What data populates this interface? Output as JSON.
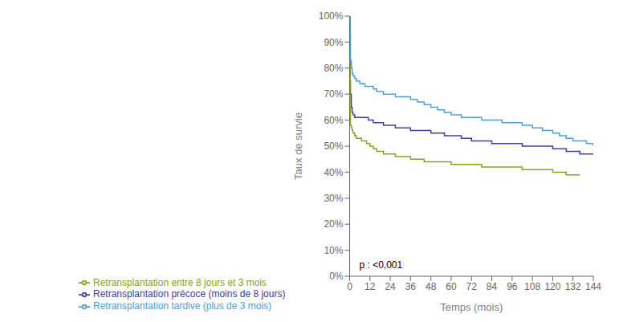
{
  "chart_data": {
    "type": "line",
    "title": "",
    "xlabel": "Temps (mois)",
    "ylabel": "Taux de survie",
    "annotation": "p : <0,001",
    "line_style": "step",
    "grid": false,
    "legend": "bottom",
    "xlim": [
      0,
      144
    ],
    "xticks": [
      0,
      12,
      24,
      36,
      48,
      60,
      72,
      84,
      96,
      108,
      120,
      132,
      144
    ],
    "ylim": [
      0,
      1.0
    ],
    "yticks": [
      {
        "value": 0.0,
        "label": "0%"
      },
      {
        "value": 0.1,
        "label": "10%"
      },
      {
        "value": 0.2,
        "label": "20%"
      },
      {
        "value": 0.3,
        "label": "30%"
      },
      {
        "value": 0.4,
        "label": "40%"
      },
      {
        "value": 0.5,
        "label": "50%"
      },
      {
        "value": 0.6,
        "label": "60%"
      },
      {
        "value": 0.7,
        "label": "70%"
      },
      {
        "value": 0.8,
        "label": "80%"
      },
      {
        "value": 0.9,
        "label": "90%"
      },
      {
        "value": 1.0,
        "label": "100%"
      }
    ],
    "series": [
      {
        "name": "Retransplantation précoce (moins de 8 jours)",
        "color": "#4040a0",
        "x": [
          0,
          0.3,
          0.5,
          1,
          1.5,
          2,
          3,
          4,
          5,
          6,
          7,
          8,
          9,
          10,
          11,
          12,
          14,
          16,
          18,
          20,
          22,
          24,
          27,
          30,
          33,
          36,
          40,
          44,
          48,
          52,
          56,
          60,
          66,
          72,
          78,
          84,
          90,
          96,
          102,
          108,
          114,
          120,
          124,
          128,
          132,
          136,
          140,
          144
        ],
        "values": [
          1.0,
          0.75,
          0.7,
          0.65,
          0.63,
          0.62,
          0.61,
          0.61,
          0.61,
          0.61,
          0.61,
          0.61,
          0.61,
          0.61,
          0.6,
          0.6,
          0.59,
          0.59,
          0.59,
          0.58,
          0.58,
          0.58,
          0.57,
          0.57,
          0.57,
          0.56,
          0.56,
          0.56,
          0.55,
          0.55,
          0.54,
          0.54,
          0.53,
          0.52,
          0.52,
          0.51,
          0.51,
          0.51,
          0.5,
          0.5,
          0.5,
          0.49,
          0.49,
          0.48,
          0.48,
          0.47,
          0.47,
          0.47
        ]
      },
      {
        "name": "Retransplantation entre 8 jours et 3 mois",
        "color": "#8ca020",
        "x": [
          0,
          0.3,
          0.5,
          1,
          1.5,
          2,
          3,
          4,
          5,
          6,
          7,
          8,
          9,
          10,
          11,
          12,
          14,
          16,
          18,
          20,
          22,
          24,
          27,
          30,
          33,
          36,
          40,
          44,
          48,
          52,
          56,
          60,
          66,
          72,
          78,
          84,
          90,
          96,
          102,
          108,
          114,
          120,
          124,
          128,
          132,
          136
        ],
        "values": [
          1.0,
          0.65,
          0.58,
          0.57,
          0.56,
          0.55,
          0.54,
          0.53,
          0.53,
          0.53,
          0.52,
          0.52,
          0.52,
          0.51,
          0.51,
          0.5,
          0.49,
          0.48,
          0.48,
          0.47,
          0.47,
          0.47,
          0.46,
          0.46,
          0.46,
          0.45,
          0.45,
          0.44,
          0.44,
          0.44,
          0.44,
          0.43,
          0.43,
          0.43,
          0.42,
          0.42,
          0.42,
          0.42,
          0.41,
          0.41,
          0.41,
          0.4,
          0.4,
          0.39,
          0.39,
          0.39
        ]
      },
      {
        "name": "Retransplantation tardive (plus de 3 mois)",
        "color": "#4ca0d8",
        "x": [
          0,
          0.3,
          0.5,
          1,
          1.5,
          2,
          3,
          4,
          5,
          6,
          7,
          8,
          9,
          10,
          11,
          12,
          14,
          16,
          18,
          20,
          22,
          24,
          27,
          30,
          33,
          36,
          40,
          44,
          48,
          52,
          56,
          60,
          66,
          72,
          78,
          84,
          90,
          96,
          102,
          108,
          114,
          120,
          124,
          128,
          132,
          136,
          140,
          144
        ],
        "values": [
          1.0,
          0.93,
          0.83,
          0.8,
          0.78,
          0.77,
          0.76,
          0.75,
          0.75,
          0.74,
          0.74,
          0.74,
          0.73,
          0.73,
          0.73,
          0.73,
          0.72,
          0.71,
          0.71,
          0.7,
          0.7,
          0.7,
          0.69,
          0.69,
          0.69,
          0.68,
          0.67,
          0.66,
          0.65,
          0.64,
          0.63,
          0.62,
          0.61,
          0.61,
          0.6,
          0.6,
          0.59,
          0.59,
          0.58,
          0.57,
          0.56,
          0.55,
          0.54,
          0.53,
          0.52,
          0.52,
          0.51,
          0.5
        ]
      }
    ]
  }
}
